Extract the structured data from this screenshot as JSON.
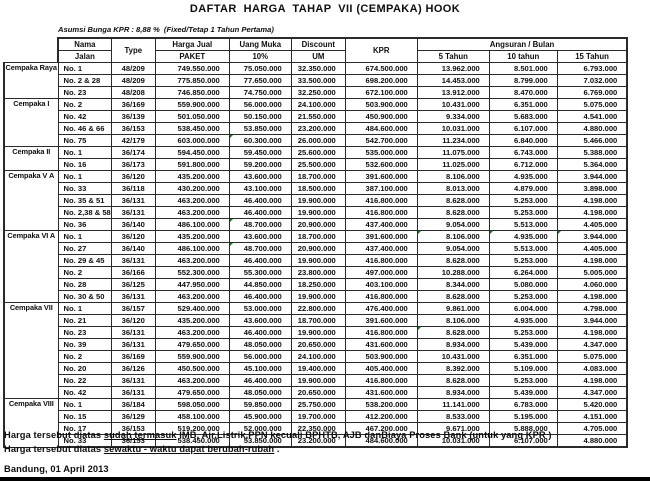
{
  "title": "DAFTAR  HARGA  TAHAP  VII (CEMPAKA) HOOK",
  "subtitle": "Asumsi Bunga KPR : 8,88 %  (Fixed/Tetap 1 Tahun Pertama)",
  "table": {
    "headers": {
      "nama": "Nama",
      "jalan": "Jalan",
      "type": "Type",
      "harga_jual": "Harga Jual",
      "paket": "PAKET",
      "uang_muka": "Uang Muka",
      "uang_muka_sub": "10%",
      "discount": "Discount",
      "discount_sub": "UM",
      "kpr": "KPR",
      "angsuran": "Angsuran / Bulan",
      "tahun5": "5 Tahun",
      "tahun10": "10 tahun",
      "tahun15": "15 Tahun"
    },
    "columns": [
      {
        "key": "jalan",
        "align": "left"
      },
      {
        "key": "type",
        "align": "center"
      },
      {
        "key": "harga",
        "align": "right"
      },
      {
        "key": "uang_muka",
        "align": "right"
      },
      {
        "key": "discount",
        "align": "right"
      },
      {
        "key": "kpr",
        "align": "right"
      },
      {
        "key": "t5",
        "align": "right"
      },
      {
        "key": "t10",
        "align": "right"
      },
      {
        "key": "t15",
        "align": "right"
      }
    ],
    "flag_color": "#217a21",
    "groups": [
      {
        "name": "Cempaka Raya",
        "rows": [
          {
            "jalan": "No. 1",
            "type": "48/209",
            "harga": "749.550.000",
            "uang_muka": "75.050.000",
            "discount": "32.350.000",
            "kpr": "674.500.000",
            "t5": "13.962.000",
            "t10": "8.501.000",
            "t15": "6.793.000"
          },
          {
            "jalan": "No. 2 & 28",
            "type": "48/209",
            "harga": "775.850.000",
            "uang_muka": "77.650.000",
            "discount": "33.500.000",
            "kpr": "698.200.000",
            "t5": "14.453.000",
            "t10": "8.799.000",
            "t15": "7.032.000"
          },
          {
            "jalan": "No. 23",
            "type": "48/208",
            "harga": "746.850.000",
            "uang_muka": "74.750.000",
            "discount": "32.250.000",
            "kpr": "672.100.000",
            "t5": "13.912.000",
            "t10": "8.470.000",
            "t15": "6.769.000"
          }
        ]
      },
      {
        "name": "Cempaka I",
        "rows": [
          {
            "jalan": "No. 2",
            "type": "36/169",
            "harga": "559.900.000",
            "uang_muka": "56.000.000",
            "discount": "24.100.000",
            "kpr": "503.900.000",
            "t5": "10.431.000",
            "t10": "6.351.000",
            "t15": "5.075.000"
          },
          {
            "jalan": "No. 42",
            "type": "36/139",
            "harga": "501.050.000",
            "uang_muka": "50.150.000",
            "discount": "21.550.000",
            "kpr": "450.900.000",
            "t5": "9.334.000",
            "t10": "5.683.000",
            "t15": "4.541.000"
          },
          {
            "jalan": "No. 46 & 66",
            "type": "36/153",
            "harga": "538.450.000",
            "uang_muka": "53.850.000",
            "discount": "23.200.000",
            "kpr": "484.600.000",
            "t5": "10.031.000",
            "t10": "6.107.000",
            "t15": "4.880.000"
          },
          {
            "jalan": "No. 75",
            "type": "42/179",
            "harga": "603.000.000",
            "uang_muka": "60.300.000",
            "discount": "26.000.000",
            "kpr": "542.700.000",
            "t5": "11.234.000",
            "t10": "6.840.000",
            "t15": "5.466.000",
            "flags": [
              "uang_muka"
            ]
          }
        ]
      },
      {
        "name": "Cempaka II",
        "rows": [
          {
            "jalan": "No. 1",
            "type": "36/174",
            "harga": "594.450.000",
            "uang_muka": "59.450.000",
            "discount": "25.600.000",
            "kpr": "535.000.000",
            "t5": "11.075.000",
            "t10": "6.743.000",
            "t15": "5.388.000"
          },
          {
            "jalan": "No. 16",
            "type": "36/173",
            "harga": "591.800.000",
            "uang_muka": "59.200.000",
            "discount": "25.500.000",
            "kpr": "532.600.000",
            "t5": "11.025.000",
            "t10": "6.712.000",
            "t15": "5.364.000"
          }
        ]
      },
      {
        "name": "Cempaka V A",
        "rows": [
          {
            "jalan": "No. 1",
            "type": "36/120",
            "harga": "435.200.000",
            "uang_muka": "43.600.000",
            "discount": "18.700.000",
            "kpr": "391.600.000",
            "t5": "8.106.000",
            "t10": "4.935.000",
            "t15": "3.944.000"
          },
          {
            "jalan": "No. 33",
            "type": "36/118",
            "harga": "430.200.000",
            "uang_muka": "43.100.000",
            "discount": "18.500.000",
            "kpr": "387.100.000",
            "t5": "8.013.000",
            "t10": "4.879.000",
            "t15": "3.898.000"
          },
          {
            "jalan": "No. 35 & 51",
            "type": "36/131",
            "harga": "463.200.000",
            "uang_muka": "46.400.000",
            "discount": "19.900.000",
            "kpr": "416.800.000",
            "t5": "8.628.000",
            "t10": "5.253.000",
            "t15": "4.198.000"
          },
          {
            "jalan": "No. 2,38 & 58",
            "type": "36/131",
            "harga": "463.200.000",
            "uang_muka": "46.400.000",
            "discount": "19.900.000",
            "kpr": "416.800.000",
            "t5": "8.628.000",
            "t10": "5.253.000",
            "t15": "4.198.000"
          },
          {
            "jalan": "No. 36",
            "type": "36/140",
            "harga": "486.100.000",
            "uang_muka": "48.700.000",
            "discount": "20.900.000",
            "kpr": "437.400.000",
            "t5": "9.054.000",
            "t10": "5.513.000",
            "t15": "4.405.000",
            "flags": [
              "uang_muka"
            ]
          }
        ]
      },
      {
        "name": "Cempaka VI A",
        "rows": [
          {
            "jalan": "No. 1",
            "type": "36/120",
            "harga": "435.200.000",
            "uang_muka": "43.600.000",
            "discount": "18.700.000",
            "kpr": "391.600.000",
            "t5": "8.106.000",
            "t10": "4.935.000",
            "t15": "3.944.000",
            "flags": [
              "t5",
              "t10",
              "t15"
            ]
          },
          {
            "jalan": "No. 27",
            "type": "36/140",
            "harga": "486.100.000",
            "uang_muka": "48.700.000",
            "discount": "20.900.000",
            "kpr": "437.400.000",
            "t5": "9.054.000",
            "t10": "5.513.000",
            "t15": "4.405.000",
            "flags": [
              "uang_muka"
            ]
          },
          {
            "jalan": "No. 29 & 45",
            "type": "36/131",
            "harga": "463.200.000",
            "uang_muka": "46.400.000",
            "discount": "19.900.000",
            "kpr": "416.800.000",
            "t5": "8.628.000",
            "t10": "5.253.000",
            "t15": "4.198.000"
          },
          {
            "jalan": "No. 2",
            "type": "36/166",
            "harga": "552.300.000",
            "uang_muka": "55.300.000",
            "discount": "23.800.000",
            "kpr": "497.000.000",
            "t5": "10.288.000",
            "t10": "6.264.000",
            "t15": "5.005.000"
          },
          {
            "jalan": "No. 28",
            "type": "36/125",
            "harga": "447.950.000",
            "uang_muka": "44.850.000",
            "discount": "18.250.000",
            "kpr": "403.100.000",
            "t5": "8.344.000",
            "t10": "5.080.000",
            "t15": "4.060.000"
          },
          {
            "jalan": "No. 30 & 50",
            "type": "36/131",
            "harga": "463.200.000",
            "uang_muka": "46.400.000",
            "discount": "19.900.000",
            "kpr": "416.800.000",
            "t5": "8.628.000",
            "t10": "5.253.000",
            "t15": "4.198.000"
          }
        ]
      },
      {
        "name": "Cempaka VII",
        "rows": [
          {
            "jalan": "No. 1",
            "type": "36/157",
            "harga": "529.400.000",
            "uang_muka": "53.000.000",
            "discount": "22.800.000",
            "kpr": "476.400.000",
            "t5": "9.861.000",
            "t10": "6.004.000",
            "t15": "4.798.000"
          },
          {
            "jalan": "No. 21",
            "type": "36/120",
            "harga": "435.200.000",
            "uang_muka": "43.600.000",
            "discount": "18.700.000",
            "kpr": "391.600.000",
            "t5": "8.106.000",
            "t10": "4.935.000",
            "t15": "3.944.000"
          },
          {
            "jalan": "No. 23",
            "type": "36/131",
            "harga": "463.200.000",
            "uang_muka": "46.400.000",
            "discount": "19.900.000",
            "kpr": "416.800.000",
            "t5": "8.628.000",
            "t10": "5.253.000",
            "t15": "4.198.000",
            "flags": [
              "t5"
            ]
          },
          {
            "jalan": "No. 39",
            "type": "36/131",
            "harga": "479.650.000",
            "uang_muka": "48.050.000",
            "discount": "20.650.000",
            "kpr": "431.600.000",
            "t5": "8.934.000",
            "t10": "5.439.000",
            "t15": "4.347.000"
          },
          {
            "jalan": "No. 2",
            "type": "36/169",
            "harga": "559.900.000",
            "uang_muka": "56.000.000",
            "discount": "24.100.000",
            "kpr": "503.900.000",
            "t5": "10.431.000",
            "t10": "6.351.000",
            "t15": "5.075.000"
          },
          {
            "jalan": "No. 20",
            "type": "36/126",
            "harga": "450.500.000",
            "uang_muka": "45.100.000",
            "discount": "19.400.000",
            "kpr": "405.400.000",
            "t5": "8.392.000",
            "t10": "5.109.000",
            "t15": "4.083.000"
          },
          {
            "jalan": "No. 22",
            "type": "36/131",
            "harga": "463.200.000",
            "uang_muka": "46.400.000",
            "discount": "19.900.000",
            "kpr": "416.800.000",
            "t5": "8.628.000",
            "t10": "5.253.000",
            "t15": "4.198.000"
          },
          {
            "jalan": "No. 42",
            "type": "36/131",
            "harga": "479.650.000",
            "uang_muka": "48.050.000",
            "discount": "20.650.000",
            "kpr": "431.600.000",
            "t5": "8.934.000",
            "t10": "5.439.000",
            "t15": "4.347.000"
          }
        ]
      },
      {
        "name": "Cempaka VIII",
        "rows": [
          {
            "jalan": "No. 1",
            "type": "36/184",
            "harga": "598.050.000",
            "uang_muka": "59.850.000",
            "discount": "25.750.000",
            "kpr": "538.200.000",
            "t5": "11.141.000",
            "t10": "6.783.000",
            "t15": "5.420.000"
          },
          {
            "jalan": "No. 15",
            "type": "36/129",
            "harga": "458.100.000",
            "uang_muka": "45.900.000",
            "discount": "19.700.000",
            "kpr": "412.200.000",
            "t5": "8.533.000",
            "t10": "5.195.000",
            "t15": "4.151.000"
          },
          {
            "jalan": "No. 17",
            "type": "36/153",
            "harga": "519.200.000",
            "uang_muka": "52.000.000",
            "discount": "22.350.000",
            "kpr": "467.200.000",
            "t5": "9.671.000",
            "t10": "5.888.000",
            "t15": "4.705.000"
          },
          {
            "jalan": "No. 33",
            "type": "36/153",
            "harga": "538.450.000",
            "uang_muka": "53.850.000",
            "discount": "23.200.000",
            "kpr": "484.600.000",
            "t5": "10.031.000",
            "t10": "6.107.000",
            "t15": "4.880.000"
          }
        ]
      }
    ]
  },
  "footer": {
    "note1_prefix": "Harga tersebut diatas ",
    "note1_underline": "sudah termasuk",
    "note1_rest": " IMB, Air,Listrik,PPN kecuali BPHTB, AJB danBiaya Proses Bank (untuk yang KPR )",
    "note2_prefix": "Harga tersebut diatas ",
    "note2_underline": "sewaktu - waktu dapat berubah-rubah",
    "note2_rest": " .",
    "date": "Bandung, 01 April 2013"
  }
}
